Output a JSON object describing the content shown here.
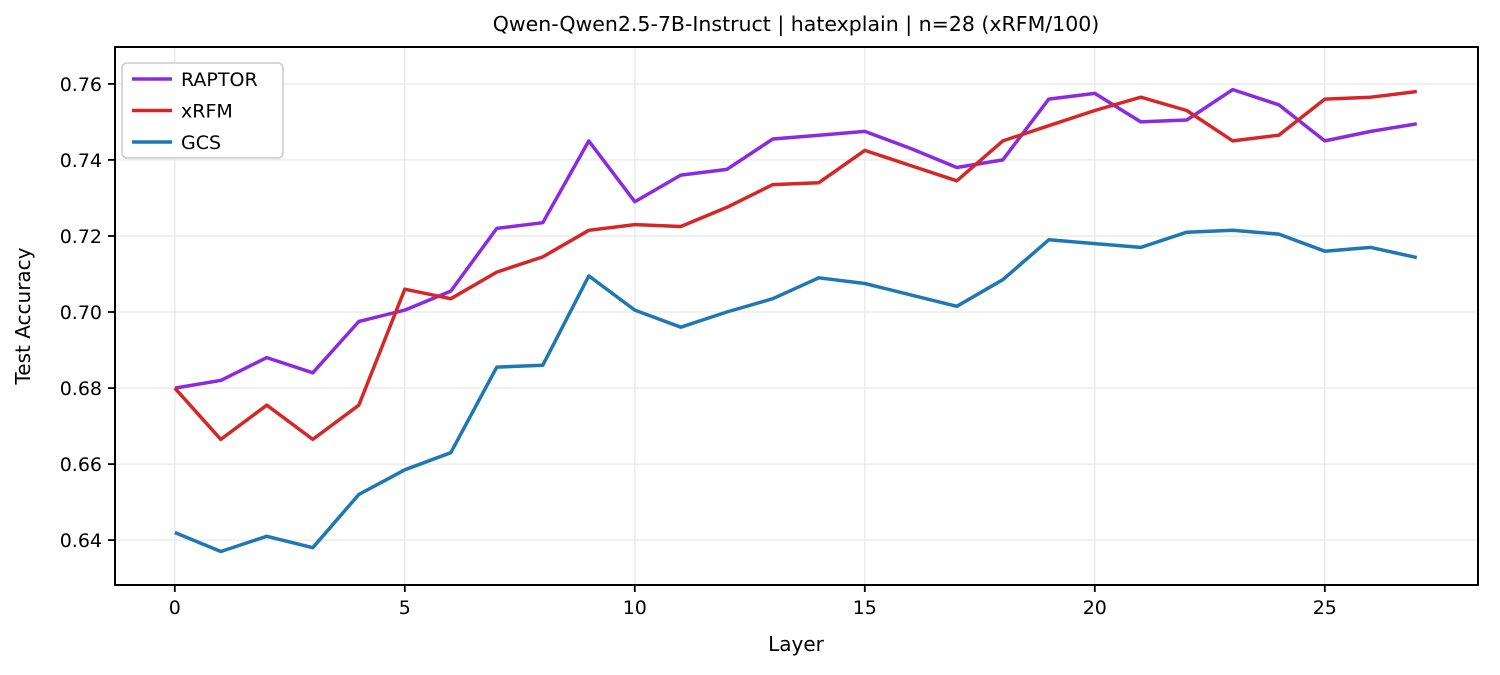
{
  "figure_title": "Qwen-Qwen2.5-7B-Instruct | hatexplain | n=28 (xRFM/100)",
  "colors": {
    "background": "#ffffff",
    "grid": "#e8e8e8",
    "spine": "#000000",
    "text": "#000000",
    "legend_border": "#cccccc",
    "raptor": "#8a2be2",
    "xrfm": "#d62728",
    "gcs": "#1f77b4"
  },
  "chart_data": {
    "type": "line",
    "title": "Qwen-Qwen2.5-7B-Instruct | hatexplain | n=28 (xRFM/100)",
    "xlabel": "Layer",
    "ylabel": "Test Accuracy",
    "grid": true,
    "legend_position": "upper left",
    "xlim": [
      -1.3,
      28.33
    ],
    "ylim": [
      0.6282,
      0.7697
    ],
    "xticks": [
      0,
      5,
      10,
      15,
      20,
      25
    ],
    "yticks": [
      0.64,
      0.66,
      0.68,
      0.7,
      0.72,
      0.74,
      0.76
    ],
    "x": [
      0,
      1,
      2,
      3,
      4,
      5,
      6,
      7,
      8,
      9,
      10,
      11,
      12,
      13,
      14,
      15,
      16,
      17,
      18,
      19,
      20,
      21,
      22,
      23,
      24,
      25,
      26,
      27
    ],
    "series": [
      {
        "name": "RAPTOR",
        "color": "#8a2be2",
        "values": [
          0.68,
          0.682,
          0.688,
          0.684,
          0.6975,
          0.7005,
          0.7055,
          0.722,
          0.7235,
          0.745,
          0.729,
          0.736,
          0.7375,
          0.7455,
          0.7465,
          0.7475,
          0.743,
          0.738,
          0.74,
          0.756,
          0.7575,
          0.75,
          0.7505,
          0.7585,
          0.7545,
          0.745,
          0.7475,
          0.7495
        ]
      },
      {
        "name": "xRFM",
        "color": "#d62728",
        "values": [
          0.68,
          0.6665,
          0.6755,
          0.6665,
          0.6755,
          0.706,
          0.7035,
          0.7105,
          0.7145,
          0.7215,
          0.723,
          0.7225,
          0.7275,
          0.7335,
          0.734,
          0.7425,
          0.7385,
          0.7345,
          0.745,
          0.749,
          0.753,
          0.7565,
          0.753,
          0.745,
          0.7465,
          0.756,
          0.7565,
          0.758
        ]
      },
      {
        "name": "GCS",
        "color": "#1f77b4",
        "values": [
          0.642,
          0.637,
          0.641,
          0.638,
          0.652,
          0.6585,
          0.663,
          0.6855,
          0.686,
          0.7095,
          0.7005,
          0.696,
          0.7,
          0.7035,
          0.709,
          0.7075,
          0.7045,
          0.7015,
          0.7085,
          0.719,
          0.718,
          0.717,
          0.721,
          0.7215,
          0.7205,
          0.716,
          0.717,
          0.7143
        ]
      }
    ]
  }
}
